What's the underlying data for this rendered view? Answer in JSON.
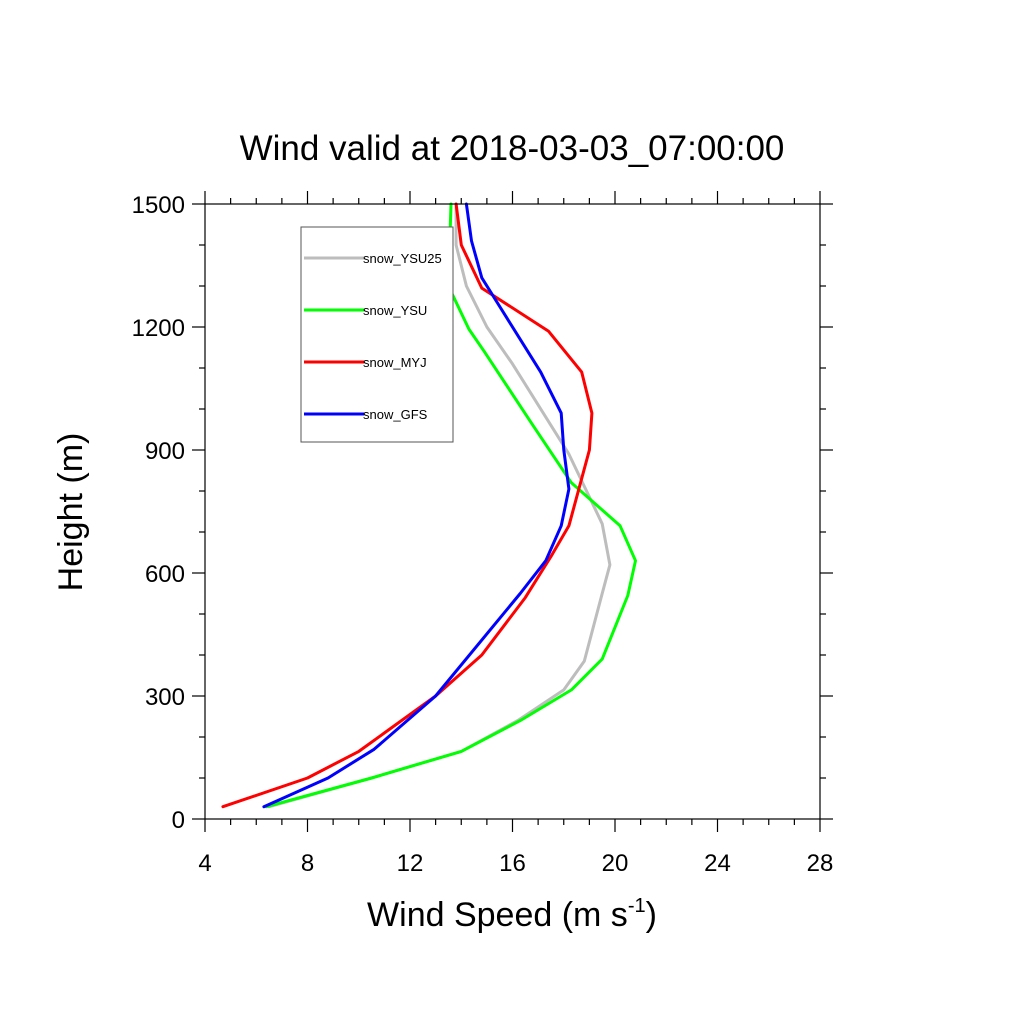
{
  "chart_data": {
    "type": "line",
    "title": "Wind valid at 2018-03-03_07:00:00",
    "xlabel": "Wind Speed (m s",
    "xlabel_sup": "-1",
    "xlabel_end": ")",
    "ylabel": "Height (m)",
    "xlim": [
      4,
      28
    ],
    "ylim": [
      0,
      1500
    ],
    "x_ticks": [
      4,
      8,
      12,
      16,
      20,
      24,
      28
    ],
    "y_ticks": [
      0,
      300,
      600,
      900,
      1200,
      1500
    ],
    "x_tick_labels": [
      "4",
      "8",
      "12",
      "16",
      "20",
      "24",
      "28"
    ],
    "y_tick_labels": [
      "0",
      "300",
      "600",
      "900",
      "1200",
      "1500"
    ],
    "grid": false,
    "legend_position": "top-left",
    "series": [
      {
        "name": "snow_YSU25",
        "color": "#bdbdbd",
        "points": [
          [
            6.5,
            30
          ],
          [
            10.5,
            100
          ],
          [
            14.0,
            165
          ],
          [
            16.2,
            240
          ],
          [
            18.0,
            315
          ],
          [
            18.8,
            385
          ],
          [
            19.5,
            550
          ],
          [
            19.8,
            620
          ],
          [
            19.5,
            720
          ],
          [
            18.2,
            890
          ],
          [
            16.0,
            1110
          ],
          [
            15.0,
            1200
          ],
          [
            14.2,
            1300
          ],
          [
            13.8,
            1400
          ],
          [
            13.8,
            1500
          ]
        ]
      },
      {
        "name": "snow_YSU",
        "color": "#00ff00",
        "points": [
          [
            6.4,
            30
          ],
          [
            10.5,
            100
          ],
          [
            14.0,
            165
          ],
          [
            16.3,
            240
          ],
          [
            18.3,
            315
          ],
          [
            19.5,
            390
          ],
          [
            20.5,
            545
          ],
          [
            20.8,
            630
          ],
          [
            20.2,
            715
          ],
          [
            18.3,
            820
          ],
          [
            16.8,
            960
          ],
          [
            14.9,
            1140
          ],
          [
            14.3,
            1195
          ],
          [
            13.5,
            1300
          ],
          [
            13.6,
            1500
          ]
        ]
      },
      {
        "name": "snow_MYJ",
        "color": "#ff0000",
        "points": [
          [
            4.7,
            30
          ],
          [
            8.0,
            100
          ],
          [
            10.0,
            165
          ],
          [
            13.0,
            300
          ],
          [
            14.8,
            400
          ],
          [
            16.5,
            540
          ],
          [
            17.5,
            640
          ],
          [
            18.2,
            715
          ],
          [
            19.0,
            900
          ],
          [
            19.1,
            990
          ],
          [
            18.7,
            1090
          ],
          [
            17.4,
            1190
          ],
          [
            14.8,
            1295
          ],
          [
            14.0,
            1400
          ],
          [
            13.8,
            1500
          ]
        ]
      },
      {
        "name": "snow_GFS",
        "color": "#0000ff",
        "points": [
          [
            6.3,
            30
          ],
          [
            8.8,
            100
          ],
          [
            10.6,
            170
          ],
          [
            13.0,
            300
          ],
          [
            16.3,
            550
          ],
          [
            17.3,
            630
          ],
          [
            17.9,
            715
          ],
          [
            18.2,
            805
          ],
          [
            18.0,
            900
          ],
          [
            17.9,
            990
          ],
          [
            17.1,
            1090
          ],
          [
            15.5,
            1250
          ],
          [
            14.8,
            1320
          ],
          [
            14.4,
            1410
          ],
          [
            14.2,
            1500
          ]
        ]
      }
    ]
  }
}
